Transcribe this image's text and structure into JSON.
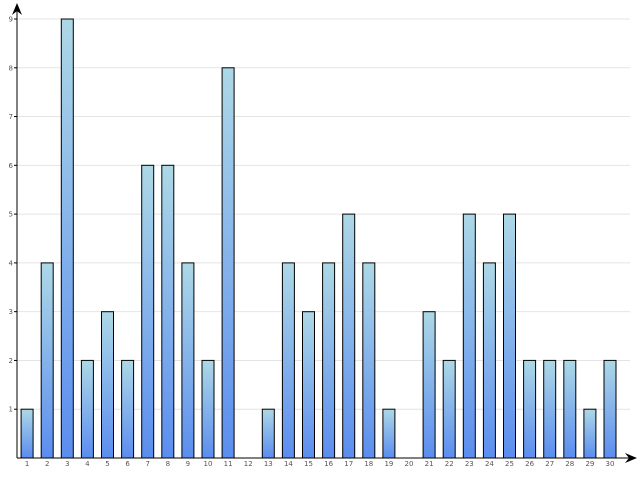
{
  "chart_data": {
    "type": "bar",
    "title": "",
    "xlabel": "",
    "ylabel": "",
    "categories": [
      "1",
      "2",
      "3",
      "4",
      "5",
      "6",
      "7",
      "8",
      "9",
      "10",
      "11",
      "12",
      "13",
      "14",
      "15",
      "16",
      "17",
      "18",
      "19",
      "20",
      "21",
      "22",
      "23",
      "24",
      "25",
      "26",
      "27",
      "28",
      "29",
      "30"
    ],
    "values": [
      1,
      4,
      9,
      2,
      3,
      2,
      6,
      6,
      4,
      2,
      8,
      0,
      1,
      4,
      3,
      4,
      5,
      4,
      1,
      0,
      3,
      2,
      5,
      4,
      5,
      2,
      2,
      2,
      1,
      2
    ],
    "ylim": [
      0,
      9
    ],
    "yticks": [
      1,
      2,
      3,
      4,
      5,
      6,
      7,
      8,
      9
    ],
    "grid": true,
    "legend": "none",
    "colors": {
      "bar_top": "#add8e6",
      "bar_bottom": "#5b8def",
      "bar_stroke": "#000000",
      "grid": "#e4e4e4",
      "axis": "#000000"
    }
  }
}
